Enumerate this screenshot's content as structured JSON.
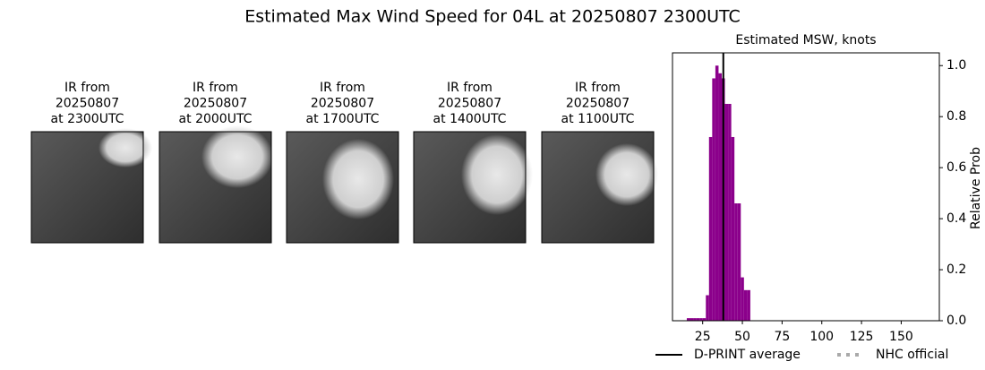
{
  "title": "Estimated Max Wind Speed for 04L at 20250807 2300UTC",
  "panels": [
    {
      "lines": [
        "IR from",
        "20250807",
        "at 2300UTC"
      ]
    },
    {
      "lines": [
        "IR from",
        "20250807",
        "at 2000UTC"
      ]
    },
    {
      "lines": [
        "IR from",
        "20250807",
        "at 1700UTC"
      ]
    },
    {
      "lines": [
        "IR from",
        "20250807",
        "at 1400UTC"
      ]
    },
    {
      "lines": [
        "IR from",
        "20250807",
        "at 1100UTC"
      ]
    }
  ],
  "chart_data": {
    "type": "histogram",
    "title": "Estimated MSW, knots",
    "y_label": "Relative Prob",
    "bins": [
      15,
      17,
      19,
      21,
      23,
      25,
      27,
      29,
      31,
      33,
      35,
      37,
      39,
      41,
      43,
      45,
      47,
      49,
      51,
      53,
      55
    ],
    "values": [
      0.01,
      0.01,
      0.01,
      0.01,
      0.01,
      0.01,
      0.1,
      0.72,
      0.95,
      1.0,
      0.97,
      0.95,
      0.85,
      0.85,
      0.72,
      0.46,
      0.46,
      0.17,
      0.12,
      0.12
    ],
    "color": "#8b008b",
    "xlim": [
      6,
      174
    ],
    "xticks": [
      25,
      50,
      75,
      100,
      125,
      150
    ],
    "ylim": [
      0,
      1.05
    ],
    "yticks": [
      {
        "value": 0,
        "label": "0.0"
      },
      0.2,
      0.4,
      0.6,
      0.8,
      {
        "value": 1,
        "label": "1.0"
      }
    ],
    "y_axis_side": "right",
    "d_print_average": {
      "name": "D-PRINT average",
      "value": 38,
      "color": "#000000"
    },
    "nhc_official": {
      "name": "NHC official",
      "color": "#aaaaaa"
    }
  }
}
